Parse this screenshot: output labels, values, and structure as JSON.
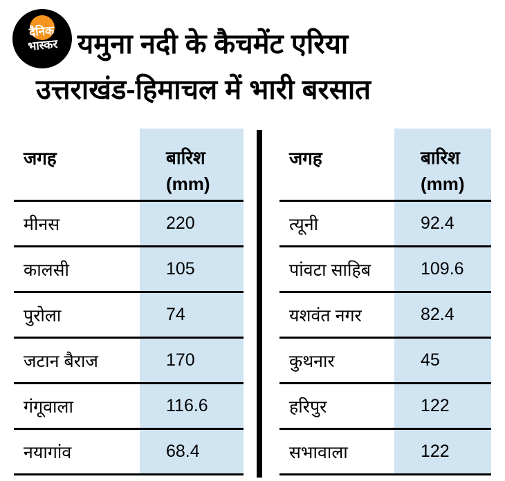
{
  "logo": {
    "line1": "दैनिक",
    "line2": "भास्कर"
  },
  "title": {
    "line1": "यमुना नदी के कैचमेंट एरिया",
    "line2": "उत्तराखंड-हिमाचल में भारी बरसात"
  },
  "colors": {
    "highlight_blue": "#d0e4f2",
    "sun_orange": "#f7941e",
    "text": "#000000",
    "background": "#ffffff"
  },
  "tables": {
    "left": {
      "header_place": "जगह",
      "header_rain_line1": "बारिश",
      "header_rain_line2": "(mm)",
      "rows": [
        {
          "place": "मीनस",
          "value": "220"
        },
        {
          "place": "कालसी",
          "value": "105"
        },
        {
          "place": "पुरोला",
          "value": "74"
        },
        {
          "place": "जटान बैराज",
          "value": "170"
        },
        {
          "place": "गंगूवाला",
          "value": "116.6"
        },
        {
          "place": "नयागांव",
          "value": "68.4"
        }
      ]
    },
    "right": {
      "header_place": "जगह",
      "header_rain_line1": "बारिश",
      "header_rain_line2": "(mm)",
      "rows": [
        {
          "place": "त्यूनी",
          "value": "92.4"
        },
        {
          "place": "पांवटा साहिब",
          "value": "109.6"
        },
        {
          "place": "यशवंत नगर",
          "value": "82.4"
        },
        {
          "place": "कुथनार",
          "value": "45"
        },
        {
          "place": "हरिपुर",
          "value": "122"
        },
        {
          "place": "सभावाला",
          "value": "122"
        }
      ]
    }
  },
  "chart_data": [
    {
      "type": "table",
      "title": "यमुना नदी के कैचमेंट एरिया उत्तराखंड-हिमाचल में भारी बरसात",
      "columns": [
        "जगह",
        "बारिश (mm)"
      ],
      "rows": [
        [
          "मीनस",
          220
        ],
        [
          "कालसी",
          105
        ],
        [
          "पुरोला",
          74
        ],
        [
          "जटान बैराज",
          170
        ],
        [
          "गंगूवाला",
          116.6
        ],
        [
          "नयागांव",
          68.4
        ]
      ]
    },
    {
      "type": "table",
      "columns": [
        "जगह",
        "बारिश (mm)"
      ],
      "rows": [
        [
          "त्यूनी",
          92.4
        ],
        [
          "पांवटा साहिब",
          109.6
        ],
        [
          "यशवंत नगर",
          82.4
        ],
        [
          "कुथनार",
          45
        ],
        [
          "हरिपुर",
          122
        ],
        [
          "सभावाला",
          122
        ]
      ]
    }
  ]
}
